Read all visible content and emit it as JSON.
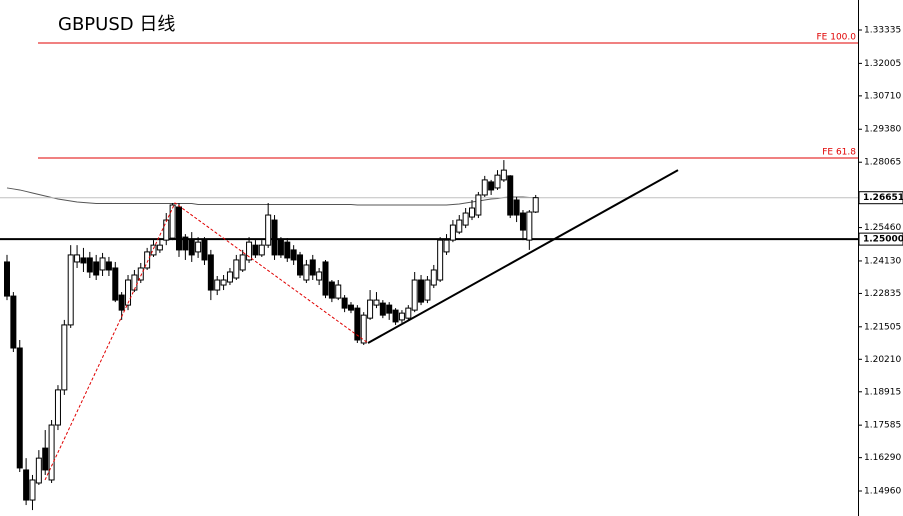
{
  "chart_data": {
    "type": "candlestick",
    "title": "GBPUSD 日线",
    "open": [
      1.2409,
      1.2273,
      1.2066,
      1.158,
      1.146,
      1.1528,
      1.1667,
      1.154,
      1.1759,
      1.1899,
      1.2158,
      1.2409,
      1.2425,
      1.2425,
      1.2409,
      1.2377,
      1.2409,
      1.2385,
      1.2277,
      1.2237,
      1.2297,
      1.2337,
      1.2385,
      1.2437,
      1.2457,
      1.2496,
      1.2504,
      1.2628,
      1.2508,
      1.2496,
      1.2449,
      1.2496,
      1.2437,
      1.2297,
      1.2317,
      1.2329,
      1.2345,
      1.2377,
      1.2417,
      1.2476,
      1.2437,
      1.2476,
      1.2576,
      1.2496,
      1.2488,
      1.2457,
      1.2437,
      1.2337,
      1.2417,
      1.2337,
      1.2409,
      1.2329,
      1.2265,
      1.2265,
      1.2237,
      1.2225,
      1.2086,
      1.2185,
      1.2237,
      1.2245,
      1.2237,
      1.2217,
      1.2178,
      1.2185,
      1.2217,
      1.2337,
      1.2257,
      1.2317,
      1.2337,
      1.2449,
      1.2496,
      1.2528,
      1.2556,
      1.2588,
      1.2596,
      1.2676,
      1.2728,
      1.2704,
      1.2736,
      1.2752,
      1.2656,
      1.2604,
      1.2496,
      1.2608
    ],
    "high": [
      1.2437,
      1.2289,
      1.2098,
      1.1627,
      1.156,
      1.1659,
      1.1739,
      1.1779,
      1.1918,
      1.2178,
      1.2476,
      1.2476,
      1.2465,
      1.2449,
      1.2437,
      1.2445,
      1.2429,
      1.2409,
      1.2289,
      1.2357,
      1.2377,
      1.2405,
      1.2465,
      1.2496,
      1.2504,
      1.2604,
      1.2644,
      1.2644,
      1.252,
      1.2528,
      1.2508,
      1.2508,
      1.2457,
      1.2353,
      1.2357,
      1.2385,
      1.2437,
      1.2457,
      1.2508,
      1.2496,
      1.2496,
      1.2644,
      1.2596,
      1.2508,
      1.2504,
      1.2476,
      1.2449,
      1.2417,
      1.2437,
      1.2385,
      1.2417,
      1.2337,
      1.2337,
      1.2277,
      1.2249,
      1.2237,
      1.2209,
      1.2297,
      1.2289,
      1.2257,
      1.2249,
      1.2225,
      1.2217,
      1.2237,
      1.2369,
      1.2357,
      1.2353,
      1.2397,
      1.2508,
      1.252,
      1.2576,
      1.2596,
      1.2624,
      1.2656,
      1.2688,
      1.2752,
      1.2736,
      1.2775,
      1.2815,
      1.2755,
      1.2668,
      1.2616,
      1.2616,
      1.2676
    ],
    "low": [
      1.2257,
      1.205,
      1.1572,
      1.144,
      1.142,
      1.152,
      1.156,
      1.1528,
      1.1739,
      1.1879,
      1.2146,
      1.2385,
      1.2369,
      1.2345,
      1.2337,
      1.2353,
      1.2353,
      1.2249,
      1.2178,
      1.2217,
      1.2289,
      1.2325,
      1.2377,
      1.2429,
      1.2445,
      1.2476,
      1.2496,
      1.2429,
      1.2417,
      1.2409,
      1.2425,
      1.2397,
      1.2257,
      1.2277,
      1.2297,
      1.2317,
      1.2337,
      1.2369,
      1.2405,
      1.2425,
      1.2429,
      1.2465,
      1.2417,
      1.2425,
      1.2409,
      1.2397,
      1.2345,
      1.2325,
      1.2337,
      1.2317,
      1.2265,
      1.2249,
      1.2257,
      1.2209,
      1.2205,
      1.2086,
      1.2078,
      1.2178,
      1.2225,
      1.2185,
      1.2178,
      1.2158,
      1.2166,
      1.2178,
      1.2209,
      1.2237,
      1.2245,
      1.2305,
      1.2329,
      1.2437,
      1.2488,
      1.252,
      1.2544,
      1.2576,
      1.2584,
      1.2668,
      1.2676,
      1.2696,
      1.2728,
      1.2584,
      1.2568,
      1.2496,
      1.2457,
      1.2604
    ],
    "close": [
      1.2273,
      1.2066,
      1.1588,
      1.146,
      1.154,
      1.1627,
      1.158,
      1.1759,
      1.1899,
      1.2158,
      1.2437,
      1.2437,
      1.2405,
      1.2369,
      1.2357,
      1.2425,
      1.2377,
      1.2257,
      1.2217,
      1.2337,
      1.2357,
      1.2385,
      1.2449,
      1.2476,
      1.2476,
      1.2576,
      1.2636,
      1.2457,
      1.2457,
      1.2437,
      1.2488,
      1.2417,
      1.2297,
      1.2337,
      1.2337,
      1.2369,
      1.2417,
      1.2437,
      1.2488,
      1.2437,
      1.2476,
      1.2596,
      1.2437,
      1.2437,
      1.2425,
      1.2417,
      1.2357,
      1.2397,
      1.2357,
      1.2369,
      1.2277,
      1.2265,
      1.2317,
      1.2225,
      1.2217,
      1.2098,
      1.2197,
      1.2257,
      1.2257,
      1.2197,
      1.2205,
      1.217,
      1.2205,
      1.2225,
      1.2337,
      1.2249,
      1.2337,
      1.2377,
      1.2496,
      1.2496,
      1.2556,
      1.2576,
      1.2604,
      1.2624,
      1.2676,
      1.2736,
      1.2696,
      1.2755,
      1.2775,
      1.2596,
      1.2596,
      1.2536,
      1.2608,
      1.26651
    ],
    "bull_color": "#ffffff",
    "bear_color": "#000000",
    "ma": {
      "color": "#555555",
      "values": [
        1.2704,
        1.27,
        1.2696,
        1.269,
        1.2684,
        1.2678,
        1.2672,
        1.2666,
        1.266,
        1.2656,
        1.2652,
        1.2648,
        1.2646,
        1.2644,
        1.2642,
        1.2642,
        1.2642,
        1.2642,
        1.2642,
        1.2642,
        1.2642,
        1.2642,
        1.2642,
        1.2642,
        1.2642,
        1.2642,
        1.2642,
        1.2642,
        1.2642,
        1.2642,
        1.2638,
        1.2638,
        1.2638,
        1.2638,
        1.2638,
        1.2638,
        1.2638,
        1.2638,
        1.2638,
        1.2638,
        1.2638,
        1.2638,
        1.2638,
        1.2638,
        1.2638,
        1.2638,
        1.2638,
        1.2638,
        1.2638,
        1.2638,
        1.2638,
        1.2638,
        1.2638,
        1.2638,
        1.2638,
        1.2636,
        1.2636,
        1.2636,
        1.2636,
        1.2636,
        1.2636,
        1.2636,
        1.2636,
        1.2636,
        1.2636,
        1.2636,
        1.2636,
        1.2636,
        1.2636,
        1.2636,
        1.2638,
        1.264,
        1.2644,
        1.2648,
        1.2652,
        1.2656,
        1.266,
        1.2662,
        1.2666,
        1.2668,
        1.2668,
        1.2668,
        1.2666,
        1.2666
      ]
    },
    "ylim": [
      1.13964,
      1.34531
    ],
    "yticks": [
      1.33335,
      1.32005,
      {
        "value": 1.3071,
        "label": "1.30710"
      },
      {
        "value": 1.2938,
        "label": "1.29380"
      },
      1.28065,
      {
        "value": 1.2546,
        "label": "1.25460"
      },
      {
        "value": 1.2413,
        "label": "1.24130"
      },
      1.22835,
      1.21505,
      {
        "value": 1.2021,
        "label": "1.20210"
      },
      1.18915,
      1.17585,
      {
        "value": 1.1629,
        "label": "1.16290"
      },
      {
        "value": 1.1496,
        "label": "1.14960"
      }
    ],
    "levels": [
      {
        "label": "FE 100.0",
        "value": 1.32817,
        "color": "#e00000"
      },
      {
        "label": "FE 61.8",
        "value": 1.28233,
        "color": "#e00000"
      }
    ],
    "price_lines": [
      {
        "value": 1.26651,
        "color": "#c0c0c0"
      },
      {
        "value": 1.25,
        "label": "1.25000",
        "color": "#000000"
      }
    ],
    "trend_lines": [
      {
        "color": "#000000",
        "dashed": false,
        "points": [
          [
            56.67,
            1.2086
          ],
          [
            105.34,
            1.2775
          ]
        ]
      },
      {
        "color": "#e00000",
        "dashed": true,
        "points": [
          [
            5.97,
            1.154
          ],
          [
            26.37,
            1.2644
          ],
          [
            56.67,
            1.2086
          ]
        ]
      }
    ]
  }
}
